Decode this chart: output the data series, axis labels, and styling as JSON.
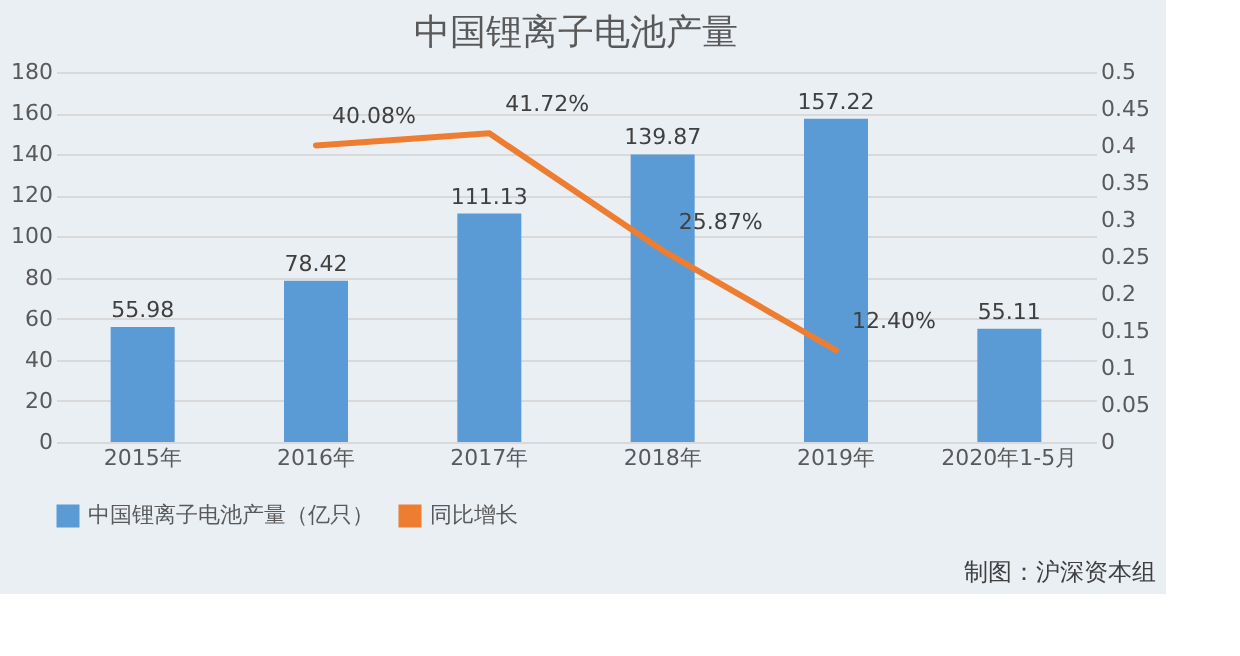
{
  "chart_data": {
    "type": "bar",
    "title": "中国锂离子电池产量",
    "categories": [
      "2015年",
      "2016年",
      "2017年",
      "2018年",
      "2019年",
      "2020年1-5月"
    ],
    "series": [
      {
        "name": "中国锂离子电池产量（亿只）",
        "color": "#5b9bd5",
        "values": [
          55.98,
          78.42,
          111.13,
          139.87,
          157.22,
          55.11
        ],
        "value_labels": [
          "55.98",
          "78.42",
          "111.13",
          "139.87",
          "157.22",
          "55.11"
        ]
      },
      {
        "name": "同比增长",
        "type": "line",
        "axis": "y2",
        "color": "#ed7d31",
        "values": [
          null,
          0.4008,
          0.4172,
          0.2587,
          0.124,
          null
        ],
        "value_labels": [
          null,
          "40.08%",
          "41.72%",
          "25.87%",
          "12.40%",
          null
        ]
      }
    ],
    "ylim": [
      0,
      180
    ],
    "yticks": [
      0,
      20,
      40,
      60,
      80,
      100,
      120,
      140,
      160,
      180
    ],
    "y2lim": [
      0,
      0.5
    ],
    "y2ticks": [
      0,
      0.05,
      0.1,
      0.15,
      0.2,
      0.25,
      0.3,
      0.35,
      0.4,
      0.45,
      0.5
    ],
    "grid": "y",
    "legend": "bottom",
    "line_style": "solid",
    "marker": "none",
    "annotations": [
      "制图：沪深资本组"
    ]
  }
}
